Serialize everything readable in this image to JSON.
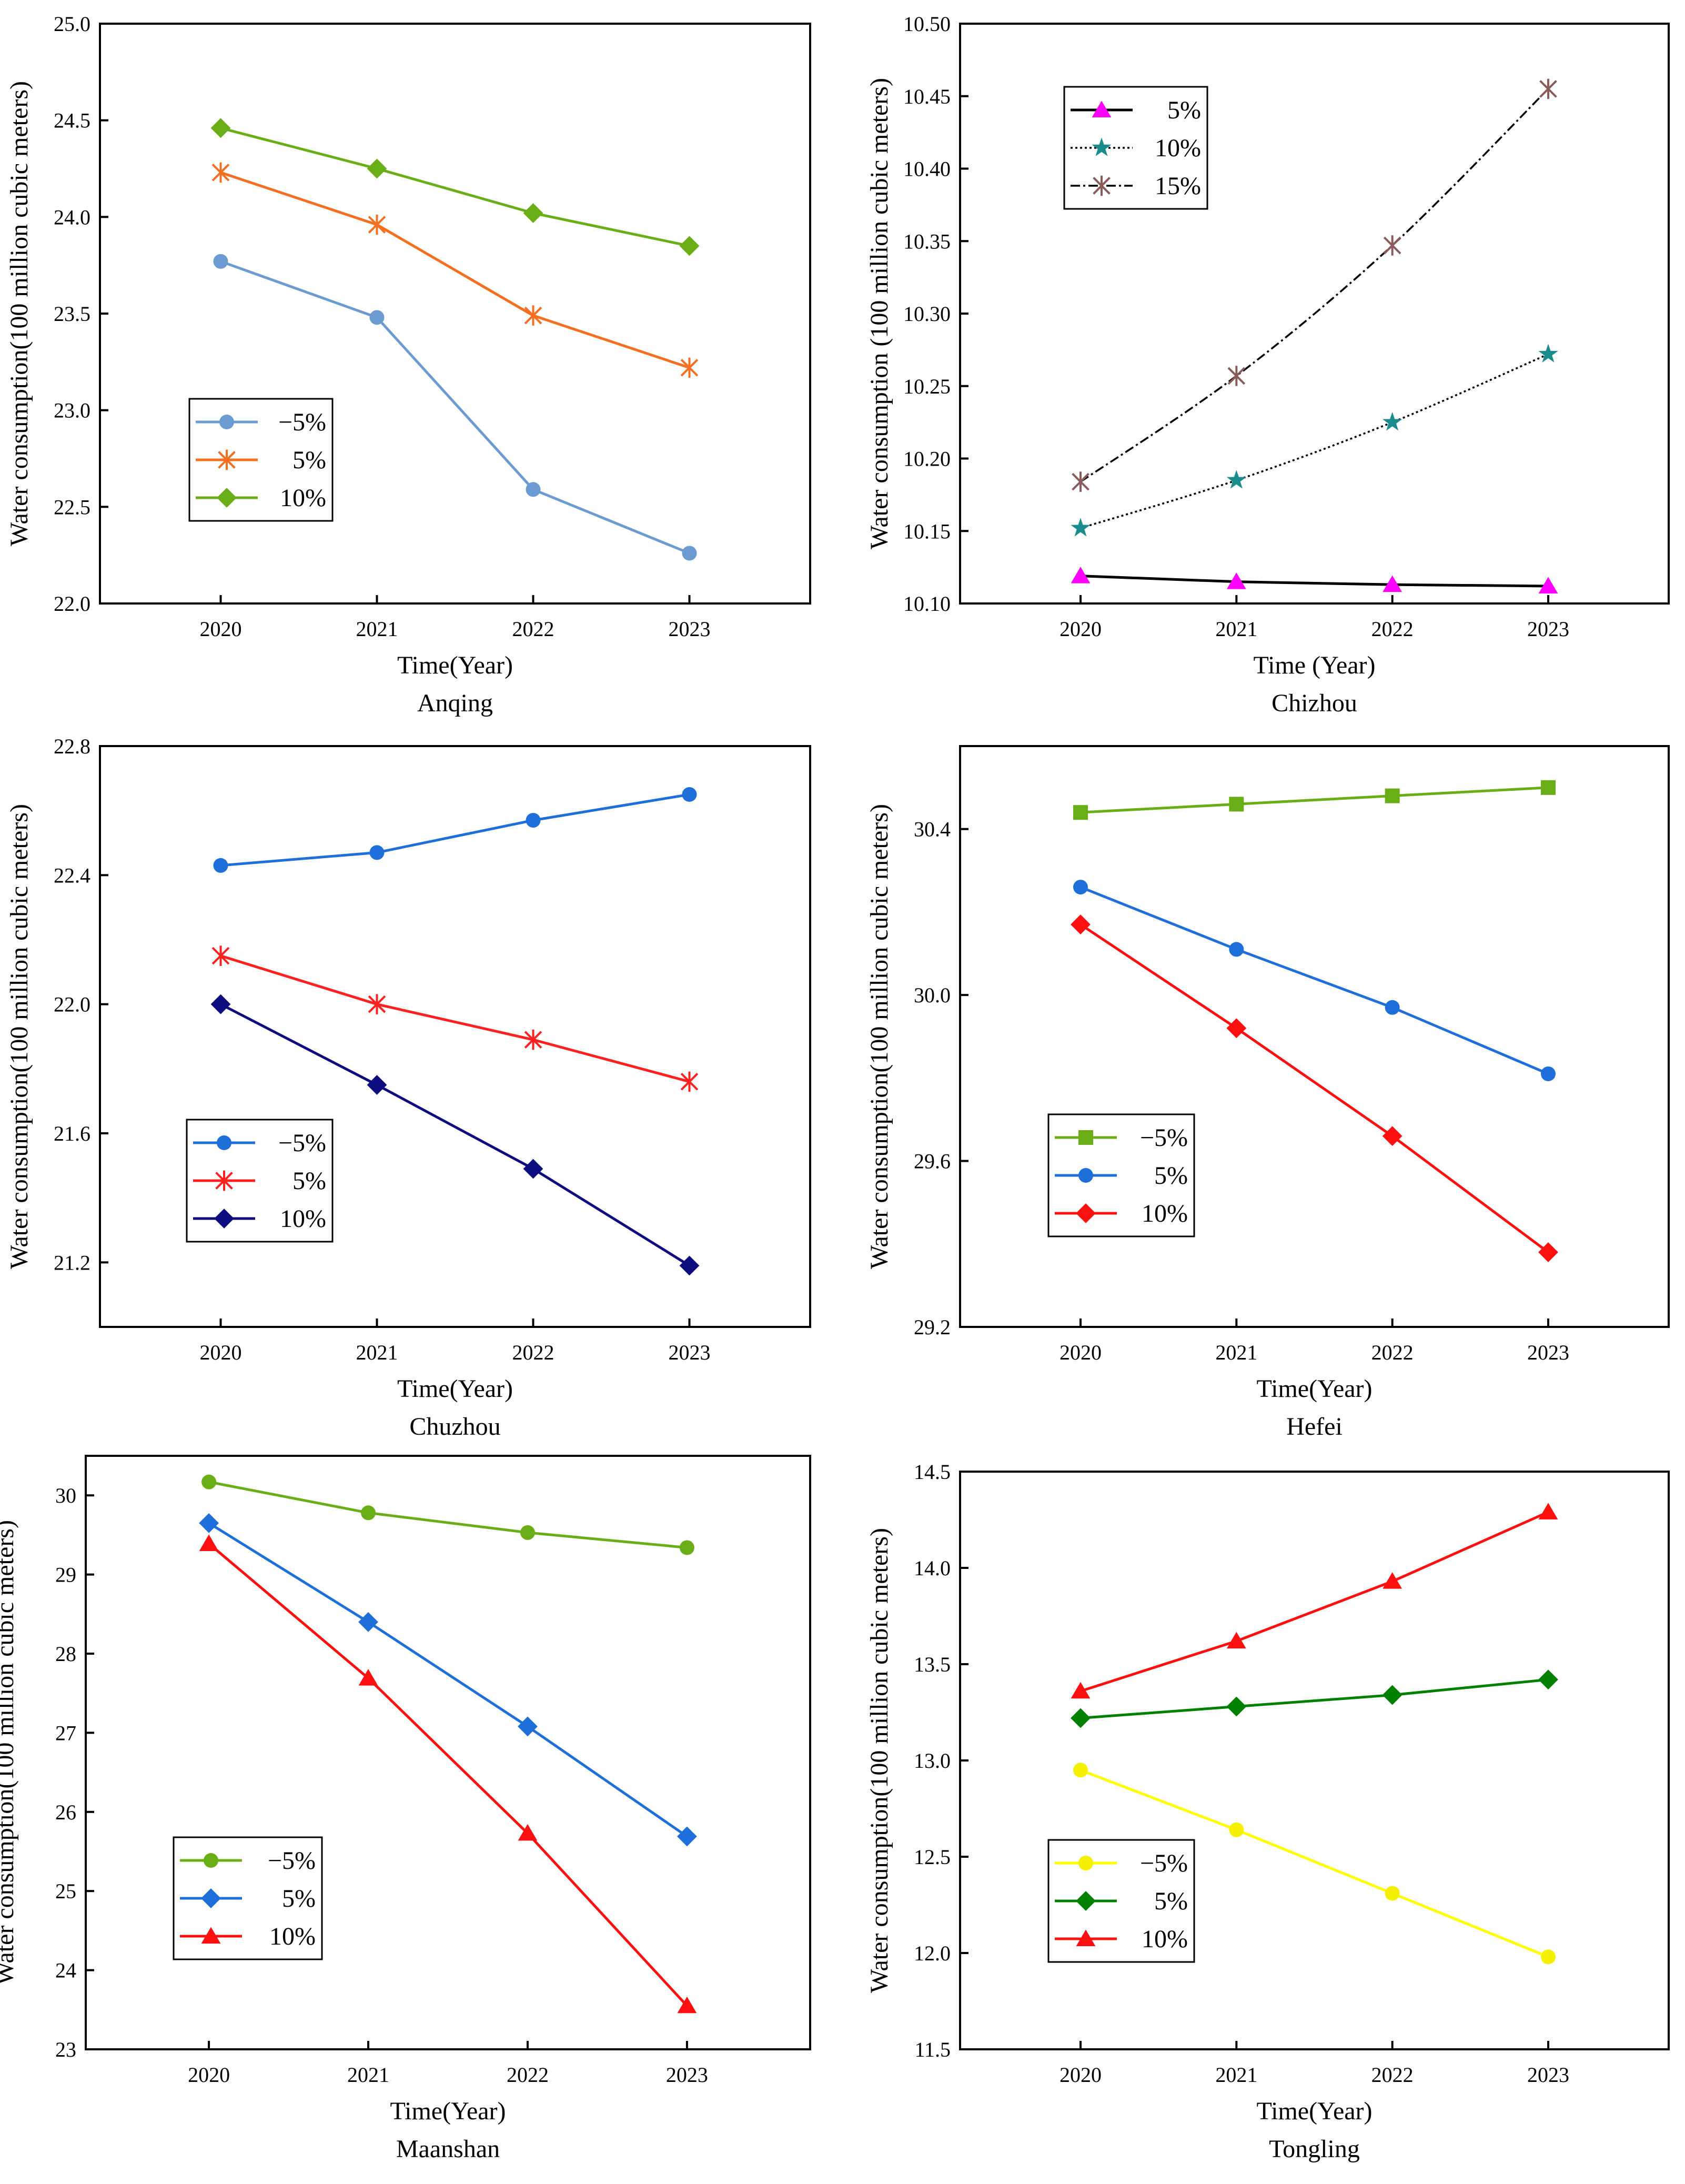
{
  "chart_data": [
    {
      "type": "line",
      "title": "Anqing",
      "xlabel": "Time(Year)",
      "ylabel": "Water consumption(100 million cubic meters)",
      "x": [
        2020,
        2021,
        2022,
        2023
      ],
      "ylim": [
        22.0,
        25.0
      ],
      "yticks": [
        "22.0",
        "22.5",
        "23.0",
        "23.5",
        "24.0",
        "24.5",
        "25.0"
      ],
      "legend_position": "middle-left",
      "series": [
        {
          "name": "−5%",
          "values": [
            23.77,
            23.48,
            22.59,
            22.26
          ],
          "color": "#6b9bd1",
          "marker": "circle",
          "dash": "solid"
        },
        {
          "name": "5%",
          "values": [
            24.23,
            23.96,
            23.49,
            23.22
          ],
          "color": "#f56f20",
          "marker": "asterisk",
          "dash": "solid"
        },
        {
          "name": "10%",
          "values": [
            24.46,
            24.25,
            24.02,
            23.85
          ],
          "color": "#6aae17",
          "marker": "diamond",
          "dash": "solid"
        }
      ]
    },
    {
      "type": "line",
      "title": "Chizhou",
      "xlabel": "Time (Year)",
      "ylabel": "Water consumption (100 million cubic meters)",
      "x": [
        2020,
        2021,
        2022,
        2023
      ],
      "ylim": [
        10.1,
        10.5
      ],
      "yticks": [
        "10.10",
        "10.15",
        "10.20",
        "10.25",
        "10.30",
        "10.35",
        "10.40",
        "10.45",
        "10.50"
      ],
      "legend_position": "top-left",
      "series": [
        {
          "name": "5%",
          "values": [
            10.119,
            10.115,
            10.113,
            10.112
          ],
          "color": "#000000",
          "marker_color": "#ff00ff",
          "marker": "triangle",
          "dash": "solid"
        },
        {
          "name": "10%",
          "values": [
            10.152,
            10.185,
            10.225,
            10.272
          ],
          "color": "#000000",
          "marker_color": "#1a8c8c",
          "marker": "star",
          "dash": "dotted"
        },
        {
          "name": "15%",
          "values": [
            10.184,
            10.257,
            10.347,
            10.455
          ],
          "color": "#000000",
          "marker_color": "#8b5a5a",
          "marker": "asterisk",
          "dash": "dashdot"
        }
      ]
    },
    {
      "type": "line",
      "title": "Chuzhou",
      "xlabel": "Time(Year)",
      "ylabel": "Water consumption(100 million cubic meters)",
      "x": [
        2020,
        2021,
        2022,
        2023
      ],
      "ylim": [
        21.0,
        22.8
      ],
      "yticks": [
        "21.2",
        "21.6",
        "22.0",
        "22.4",
        "22.8"
      ],
      "legend_position": "lower-left",
      "series": [
        {
          "name": "−5%",
          "values": [
            22.43,
            22.47,
            22.57,
            22.65
          ],
          "color": "#1e6fd9",
          "marker": "circle",
          "dash": "solid"
        },
        {
          "name": "5%",
          "values": [
            22.15,
            22.0,
            21.89,
            21.76
          ],
          "color": "#ff2020",
          "marker": "asterisk",
          "dash": "solid"
        },
        {
          "name": "10%",
          "values": [
            22.0,
            21.75,
            21.49,
            21.19
          ],
          "color": "#0d0d80",
          "marker": "diamond",
          "dash": "solid"
        }
      ]
    },
    {
      "type": "line",
      "title": "Hefei",
      "xlabel": "Time(Year)",
      "ylabel": "Water consumption(100 million cubic meters)",
      "x": [
        2020,
        2021,
        2022,
        2023
      ],
      "ylim": [
        29.2,
        30.6
      ],
      "yticks": [
        "29.2",
        "29.6",
        "30.0",
        "30.4"
      ],
      "legend_position": "lower-left",
      "series": [
        {
          "name": "−5%",
          "values": [
            30.44,
            30.46,
            30.48,
            30.5
          ],
          "color": "#6aae17",
          "marker": "square",
          "dash": "solid"
        },
        {
          "name": "5%",
          "values": [
            30.26,
            30.11,
            29.97,
            29.81
          ],
          "color": "#1e6fd9",
          "marker": "circle",
          "dash": "solid"
        },
        {
          "name": "10%",
          "values": [
            30.17,
            29.92,
            29.66,
            29.38
          ],
          "color": "#ff1010",
          "marker": "diamond",
          "dash": "solid"
        }
      ]
    },
    {
      "type": "line",
      "title": "Maanshan",
      "xlabel": "Time(Year)",
      "ylabel": "Water consumption(100 million cubic meters)",
      "x": [
        2020,
        2021,
        2022,
        2023
      ],
      "ylim": [
        23.0,
        30.5
      ],
      "yticks": [
        "23",
        "24",
        "25",
        "26",
        "27",
        "28",
        "29",
        "30"
      ],
      "legend_position": "lower-left",
      "series": [
        {
          "name": "−5%",
          "values": [
            30.17,
            29.78,
            29.53,
            29.34
          ],
          "color": "#6aae17",
          "marker": "circle",
          "dash": "solid"
        },
        {
          "name": "5%",
          "values": [
            29.65,
            28.4,
            27.08,
            25.69
          ],
          "color": "#1e6fd9",
          "marker": "diamond",
          "dash": "solid"
        },
        {
          "name": "10%",
          "values": [
            29.39,
            27.69,
            25.73,
            23.55
          ],
          "color": "#ff1010",
          "marker": "triangle",
          "dash": "solid"
        }
      ]
    },
    {
      "type": "line",
      "title": "Tongling",
      "xlabel": "Time(Year)",
      "ylabel": "Water consumption(100 million cubic meters)",
      "x": [
        2020,
        2021,
        2022,
        2023
      ],
      "ylim": [
        11.5,
        14.5
      ],
      "yticks": [
        "11.5",
        "12.0",
        "12.5",
        "13.0",
        "13.5",
        "14.0",
        "14.5"
      ],
      "legend_position": "lower-left",
      "series": [
        {
          "name": "−5%",
          "values": [
            12.95,
            12.64,
            12.31,
            11.98
          ],
          "color": "#ffff00",
          "marker_color": "#f5f000",
          "marker": "circle",
          "dash": "solid"
        },
        {
          "name": "5%",
          "values": [
            13.22,
            13.28,
            13.34,
            13.42
          ],
          "color": "#008000",
          "marker": "diamond",
          "dash": "solid"
        },
        {
          "name": "10%",
          "values": [
            13.36,
            13.62,
            13.93,
            14.29
          ],
          "color": "#ff1010",
          "marker": "triangle",
          "dash": "solid"
        }
      ]
    }
  ]
}
